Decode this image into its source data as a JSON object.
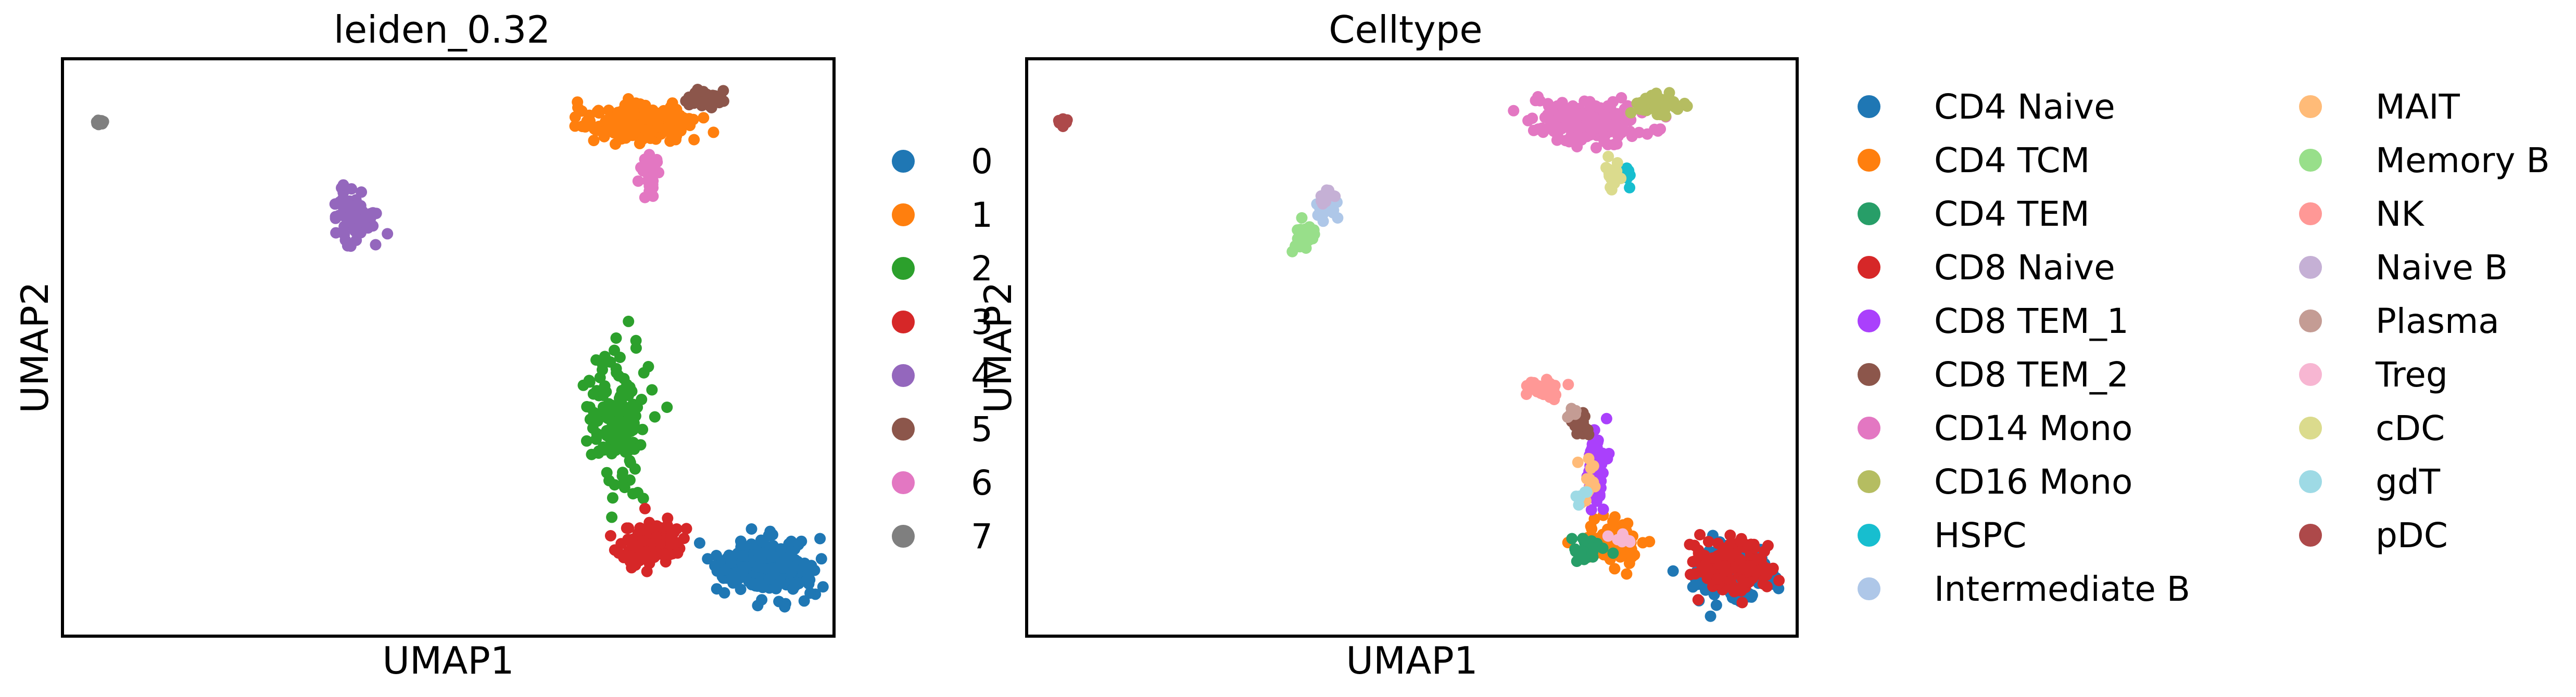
{
  "chart_data": [
    {
      "type": "scatter",
      "title": "leiden_0.32",
      "xlabel": "UMAP1",
      "ylabel": "UMAP2",
      "grid": false,
      "ticks": false,
      "legend_placement": "right",
      "xlim": [
        0,
        10
      ],
      "ylim": [
        0,
        10
      ],
      "legend": [
        "0",
        "1",
        "2",
        "3",
        "4",
        "5",
        "6",
        "7"
      ],
      "colors": [
        "#1f77b4",
        "#ff7f0e",
        "#2ca02c",
        "#d62728",
        "#9467bd",
        "#8c564b",
        "#e377c2",
        "#7f7f7f"
      ],
      "clusters": [
        {
          "label": "0",
          "cx": 9.1,
          "cy": 1.2,
          "sx": 0.5,
          "sy": 0.42,
          "n": 260
        },
        {
          "label": "1",
          "cx": 7.5,
          "cy": 8.9,
          "sx": 0.6,
          "sy": 0.3,
          "n": 220
        },
        {
          "label": "2",
          "cx": 7.2,
          "cy": 3.8,
          "sx": 0.35,
          "sy": 1.0,
          "n": 140
        },
        {
          "label": "3",
          "cx": 7.6,
          "cy": 1.6,
          "sx": 0.35,
          "sy": 0.3,
          "n": 140
        },
        {
          "label": "4",
          "cx": 3.8,
          "cy": 7.3,
          "sx": 0.25,
          "sy": 0.4,
          "n": 70
        },
        {
          "label": "5",
          "cx": 8.3,
          "cy": 9.3,
          "sx": 0.22,
          "sy": 0.15,
          "n": 50
        },
        {
          "label": "6",
          "cx": 7.6,
          "cy": 8.0,
          "sx": 0.1,
          "sy": 0.35,
          "n": 30
        },
        {
          "label": "7",
          "cx": 0.5,
          "cy": 8.9,
          "sx": 0.06,
          "sy": 0.05,
          "n": 10
        }
      ]
    },
    {
      "type": "scatter",
      "title": "Celltype",
      "xlabel": "UMAP1",
      "ylabel": "UMAP2",
      "grid": false,
      "ticks": false,
      "legend_placement": "right",
      "legend_columns": 2,
      "xlim": [
        0,
        10
      ],
      "ylim": [
        0,
        10
      ],
      "legend": [
        "CD4 Naive",
        "CD4 TCM",
        "CD4 TEM",
        "CD8 Naive",
        "CD8 TEM_1",
        "CD8 TEM_2",
        "CD14 Mono",
        "CD16 Mono",
        "HSPC",
        "Intermediate B",
        "MAIT",
        "Memory B",
        "NK",
        "Naive B",
        "Plasma",
        "Treg",
        "cDC",
        "gdT",
        "pDC"
      ],
      "colors": [
        "#1f77b4",
        "#ff7f0e",
        "#279e68",
        "#d62728",
        "#aa40fc",
        "#8c564b",
        "#e377c2",
        "#b5bd61",
        "#17becf",
        "#aec7e8",
        "#ffbb78",
        "#98df8a",
        "#ff9896",
        "#c5b0d5",
        "#c49c94",
        "#f7b6d2",
        "#dbdb8d",
        "#9edae5",
        "#ad494a"
      ],
      "clusters": [
        {
          "label": "CD4 Naive",
          "cx": 9.1,
          "cy": 1.1,
          "sx": 0.4,
          "sy": 0.4,
          "n": 150
        },
        {
          "label": "CD4 TCM",
          "cx": 7.6,
          "cy": 1.6,
          "sx": 0.35,
          "sy": 0.28,
          "n": 110
        },
        {
          "label": "CD4 TEM",
          "cx": 7.3,
          "cy": 1.5,
          "sx": 0.2,
          "sy": 0.2,
          "n": 30
        },
        {
          "label": "CD8 Naive",
          "cx": 9.2,
          "cy": 1.2,
          "sx": 0.45,
          "sy": 0.45,
          "n": 150
        },
        {
          "label": "CD8 TEM_1",
          "cx": 7.4,
          "cy": 3.0,
          "sx": 0.12,
          "sy": 0.7,
          "n": 70
        },
        {
          "label": "CD8 TEM_2",
          "cx": 7.2,
          "cy": 3.7,
          "sx": 0.12,
          "sy": 0.2,
          "n": 30
        },
        {
          "label": "CD14 Mono",
          "cx": 7.3,
          "cy": 8.9,
          "sx": 0.6,
          "sy": 0.3,
          "n": 220
        },
        {
          "label": "CD16 Mono",
          "cx": 8.2,
          "cy": 9.2,
          "sx": 0.25,
          "sy": 0.18,
          "n": 60
        },
        {
          "label": "HSPC",
          "cx": 7.8,
          "cy": 8.0,
          "sx": 0.04,
          "sy": 0.12,
          "n": 8
        },
        {
          "label": "Intermediate B",
          "cx": 3.9,
          "cy": 7.4,
          "sx": 0.15,
          "sy": 0.18,
          "n": 25
        },
        {
          "label": "MAIT",
          "cx": 7.3,
          "cy": 2.7,
          "sx": 0.1,
          "sy": 0.4,
          "n": 15
        },
        {
          "label": "Memory B",
          "cx": 3.6,
          "cy": 6.9,
          "sx": 0.15,
          "sy": 0.2,
          "n": 25
        },
        {
          "label": "NK",
          "cx": 6.7,
          "cy": 4.3,
          "sx": 0.2,
          "sy": 0.2,
          "n": 40
        },
        {
          "label": "Naive B",
          "cx": 3.9,
          "cy": 7.6,
          "sx": 0.1,
          "sy": 0.12,
          "n": 12
        },
        {
          "label": "Plasma",
          "cx": 7.1,
          "cy": 3.9,
          "sx": 0.06,
          "sy": 0.1,
          "n": 6
        },
        {
          "label": "Treg",
          "cx": 7.7,
          "cy": 1.7,
          "sx": 0.2,
          "sy": 0.1,
          "n": 8
        },
        {
          "label": "cDC",
          "cx": 7.6,
          "cy": 8.0,
          "sx": 0.08,
          "sy": 0.3,
          "n": 15
        },
        {
          "label": "gdT",
          "cx": 7.2,
          "cy": 2.4,
          "sx": 0.1,
          "sy": 0.2,
          "n": 6
        },
        {
          "label": "pDC",
          "cx": 0.45,
          "cy": 8.9,
          "sx": 0.07,
          "sy": 0.05,
          "n": 10
        }
      ]
    }
  ]
}
